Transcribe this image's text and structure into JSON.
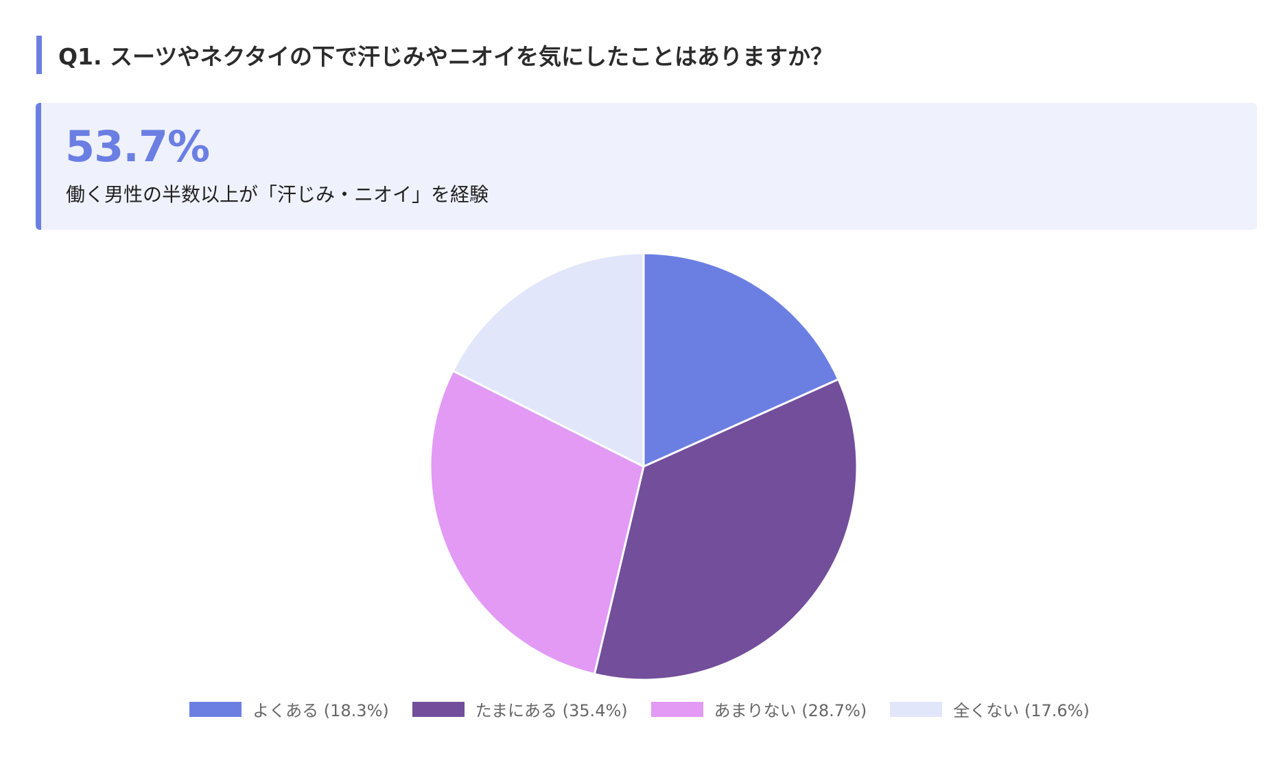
{
  "header": {
    "question": "Q1. スーツやネクタイの下で汗じみやニオイを気にしたことはありますか？"
  },
  "highlight": {
    "value": "53.7%",
    "caption": "働く男性の半数以上が「汗じみ・ニオイ」を経験"
  },
  "colors": {
    "accent": "#6b7fe3",
    "box_background": "#eff2fd"
  },
  "chart_data": {
    "type": "pie",
    "categories": [
      "よくある",
      "たまにある",
      "あまりない",
      "全くない"
    ],
    "values": [
      18.3,
      35.4,
      28.7,
      17.6
    ],
    "unit": "%",
    "colors": [
      "#6b7fe3",
      "#724e9b",
      "#e29af5",
      "#e2e6fb"
    ],
    "legend_labels": [
      "よくある (18.3%)",
      "たまにある (35.4%)",
      "あまりない (28.7%)",
      "全くない (17.6%)"
    ],
    "legend_position": "bottom",
    "start_angle": "top",
    "direction": "clockwise"
  }
}
